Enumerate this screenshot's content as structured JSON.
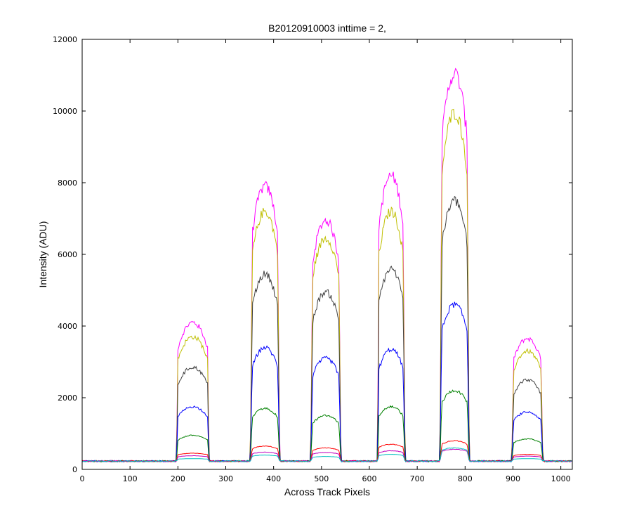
{
  "chart_data": {
    "type": "line",
    "title": "B20120910003 inttime = 2,",
    "xlabel": "Across Track Pixels",
    "ylabel": "Intensity (ADU)",
    "xlim": [
      0,
      1024
    ],
    "ylim": [
      0,
      12000
    ],
    "xticks": [
      0,
      100,
      200,
      300,
      400,
      500,
      600,
      700,
      800,
      900,
      1000
    ],
    "yticks": [
      0,
      2000,
      4000,
      6000,
      8000,
      10000,
      12000
    ],
    "grid": false,
    "legend": "none",
    "baseline": 230,
    "plateaus": [
      {
        "x_start": 197,
        "x_end": 265
      },
      {
        "x_start": 352,
        "x_end": 412
      },
      {
        "x_start": 478,
        "x_end": 540
      },
      {
        "x_start": 617,
        "x_end": 674
      },
      {
        "x_start": 748,
        "x_end": 808
      },
      {
        "x_start": 898,
        "x_end": 962
      }
    ],
    "series": [
      {
        "color": "#ff00ff",
        "peak_values": [
          4100,
          7900,
          6950,
          8200,
          11050,
          3650
        ]
      },
      {
        "color": "#bfbf00",
        "peak_values": [
          3700,
          7200,
          6450,
          7200,
          9950,
          3300
        ]
      },
      {
        "color": "#404040",
        "peak_values": [
          2850,
          5450,
          4950,
          5600,
          7500,
          2500
        ]
      },
      {
        "color": "#0000ff",
        "peak_values": [
          1750,
          3400,
          3100,
          3350,
          4600,
          1600
        ]
      },
      {
        "color": "#008000",
        "peak_values": [
          950,
          1700,
          1500,
          1750,
          2200,
          850
        ]
      },
      {
        "color": "#ff0000",
        "peak_values": [
          450,
          650,
          600,
          700,
          800,
          420
        ]
      },
      {
        "color": "#bf00bf",
        "peak_values": [
          380,
          480,
          470,
          520,
          560,
          370
        ]
      },
      {
        "color": "#00bfbf",
        "peak_values": [
          300,
          400,
          360,
          420,
          600,
          300
        ]
      }
    ]
  }
}
